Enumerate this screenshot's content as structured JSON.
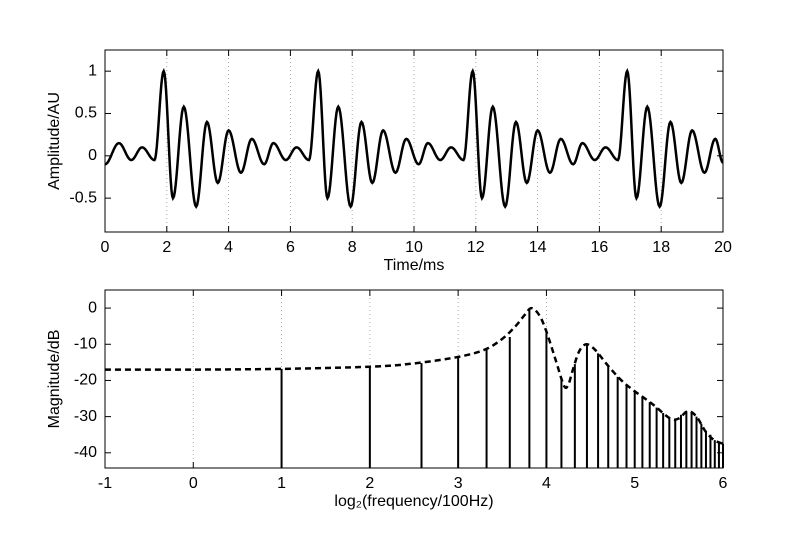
{
  "chart_data": [
    {
      "type": "line",
      "xlabel": "Time/ms",
      "ylabel": "Amplitude/AU",
      "xlim": [
        0,
        20
      ],
      "xticks": [
        0,
        2,
        4,
        6,
        8,
        10,
        12,
        14,
        16,
        18,
        20
      ],
      "ylim": [
        -0.9,
        1.25
      ],
      "yticks": [
        -0.5,
        0,
        0.5,
        1
      ],
      "xgrid": true,
      "color": "#000000",
      "x": [
        0,
        0.45,
        0.85,
        1.2,
        1.6,
        1.9,
        2.2,
        2.55,
        2.95,
        3.3,
        3.65,
        4.0,
        4.4,
        4.75,
        5.15,
        5.45,
        5.85,
        6.2,
        6.6,
        6.9,
        7.2,
        7.55,
        7.95,
        8.3,
        8.65,
        9.0,
        9.4,
        9.75,
        10.15,
        10.45,
        10.85,
        11.2,
        11.6,
        11.9,
        12.2,
        12.55,
        12.95,
        13.3,
        13.65,
        14.0,
        14.4,
        14.75,
        15.15,
        15.45,
        15.85,
        16.2,
        16.6,
        16.9,
        17.2,
        17.55,
        17.95,
        18.3,
        18.65,
        19.0,
        19.4,
        19.75,
        20
      ],
      "values": [
        -0.1,
        0.15,
        -0.05,
        0.1,
        -0.05,
        1,
        -0.5,
        0.58,
        -0.6,
        0.4,
        -0.32,
        0.3,
        -0.2,
        0.2,
        -0.1,
        0.15,
        -0.05,
        0.1,
        -0.05,
        1,
        -0.5,
        0.58,
        -0.6,
        0.4,
        -0.32,
        0.3,
        -0.2,
        0.2,
        -0.1,
        0.15,
        -0.05,
        0.1,
        -0.05,
        1,
        -0.5,
        0.58,
        -0.6,
        0.4,
        -0.32,
        0.3,
        -0.2,
        0.2,
        -0.1,
        0.15,
        -0.05,
        0.1,
        -0.05,
        1,
        -0.5,
        0.58,
        -0.6,
        0.4,
        -0.32,
        0.3,
        -0.2,
        0.2,
        -0.08
      ]
    },
    {
      "type": "stem",
      "xlabel": "log₂(frequency/100Hz)",
      "ylabel": "Magnitude/dB",
      "xlim": [
        -1,
        6
      ],
      "xticks": [
        -1,
        0,
        1,
        2,
        3,
        4,
        5,
        6
      ],
      "ylim": [
        -44.2,
        5
      ],
      "yticks": [
        -40,
        -30,
        -20,
        -10,
        0
      ],
      "xgrid": true,
      "color": "#000000",
      "x": [
        1,
        2,
        2.585,
        3,
        3.322,
        3.585,
        3.807,
        4,
        4.17,
        4.322,
        4.459,
        4.585,
        4.7,
        4.807,
        4.907,
        5,
        5.087,
        5.17,
        5.248,
        5.322,
        5.392,
        5.459,
        5.524,
        5.585,
        5.644,
        5.7,
        5.755,
        5.807,
        5.858,
        5.907,
        5.954,
        6
      ],
      "values": [
        -16.8,
        -16.2,
        -15.2,
        -13.5,
        -11.5,
        -8,
        -0.5,
        -6.5,
        -19.5,
        -15.5,
        -10,
        -12.5,
        -16,
        -19,
        -21,
        -23,
        -24.5,
        -26,
        -27.5,
        -29,
        -30.5,
        -30.5,
        -29.5,
        -28.5,
        -29,
        -30,
        -32,
        -34,
        -35,
        -36.5,
        -37,
        -37.5
      ],
      "envelope": {
        "linestyle": "dashed",
        "x": [
          -1,
          0,
          1,
          2,
          2.5,
          3,
          3.3,
          3.5,
          3.65,
          3.75,
          3.83,
          3.92,
          4.0,
          4.1,
          4.2,
          4.25,
          4.3,
          4.37,
          4.45,
          4.55,
          4.7,
          4.85,
          5.0,
          5.2,
          5.4,
          5.5,
          5.6,
          5.7,
          5.8,
          5.9,
          6.0
        ],
        "values": [
          -17,
          -17,
          -16.8,
          -16.2,
          -15.3,
          -13.5,
          -11.5,
          -8.5,
          -5,
          -2,
          0,
          -2,
          -6.5,
          -14,
          -21.5,
          -21,
          -17,
          -12,
          -10,
          -11.5,
          -16,
          -20,
          -23,
          -26.5,
          -30.5,
          -30.5,
          -28.5,
          -30,
          -34,
          -36.5,
          -37.5
        ]
      }
    }
  ]
}
